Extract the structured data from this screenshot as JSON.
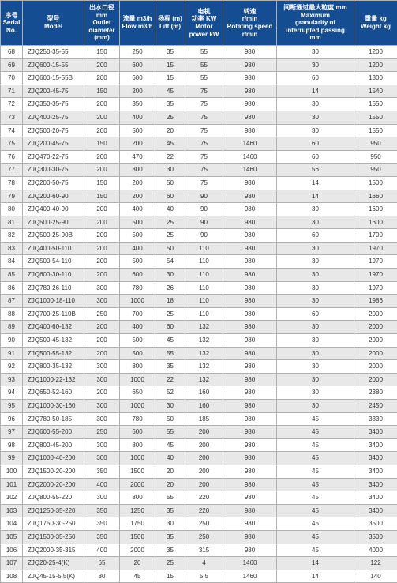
{
  "table": {
    "header_bg": "#154d92",
    "header_fg": "#ffffff",
    "row_even_bg": "#e8e8e8",
    "row_odd_bg": "#ffffff",
    "border_color": "#b0b0b0",
    "columns": [
      {
        "key": "serial",
        "label": "序号\nSerial\nNo."
      },
      {
        "key": "model",
        "label": "型号\nModel"
      },
      {
        "key": "outlet",
        "label": "出水口径\nmm\nOutlet\ndiameter\n(mm)"
      },
      {
        "key": "flow",
        "label": "流量 m3/h\nFlow m3/h"
      },
      {
        "key": "lift",
        "label": "扬程 (m)\nLift (m)"
      },
      {
        "key": "power",
        "label": "电机\n功率 KW\nMotor\npower kW"
      },
      {
        "key": "speed",
        "label": "转速\nr/min\nRotating speed\nr/min"
      },
      {
        "key": "gran",
        "label": "间断通过最大粒度 mm\nMaximum\ngranularity of\ninterrupted passing\nmm"
      },
      {
        "key": "weight",
        "label": "重量 kg\nWeight kg"
      }
    ],
    "rows": [
      {
        "serial": "68",
        "model": "ZJQ250-35-55",
        "outlet": "150",
        "flow": "250",
        "lift": "35",
        "power": "55",
        "speed": "980",
        "gran": "30",
        "weight": "1200"
      },
      {
        "serial": "69",
        "model": "ZJQ600-15-55",
        "outlet": "200",
        "flow": "600",
        "lift": "15",
        "power": "55",
        "speed": "980",
        "gran": "30",
        "weight": "1200"
      },
      {
        "serial": "70",
        "model": "ZJQ600-15-55B",
        "outlet": "200",
        "flow": "600",
        "lift": "15",
        "power": "55",
        "speed": "980",
        "gran": "60",
        "weight": "1300"
      },
      {
        "serial": "71",
        "model": "ZJQ200-45-75",
        "outlet": "150",
        "flow": "200",
        "lift": "45",
        "power": "75",
        "speed": "980",
        "gran": "14",
        "weight": "1540"
      },
      {
        "serial": "72",
        "model": "ZJQ350-35-75",
        "outlet": "200",
        "flow": "350",
        "lift": "35",
        "power": "75",
        "speed": "980",
        "gran": "30",
        "weight": "1550"
      },
      {
        "serial": "73",
        "model": "ZJQ400-25-75",
        "outlet": "200",
        "flow": "400",
        "lift": "25",
        "power": "75",
        "speed": "980",
        "gran": "30",
        "weight": "1550"
      },
      {
        "serial": "74",
        "model": "ZJQ500-20-75",
        "outlet": "200",
        "flow": "500",
        "lift": "20",
        "power": "75",
        "speed": "980",
        "gran": "30",
        "weight": "1550"
      },
      {
        "serial": "75",
        "model": "ZJQ200-45-75",
        "outlet": "150",
        "flow": "200",
        "lift": "45",
        "power": "75",
        "speed": "1460",
        "gran": "60",
        "weight": "950"
      },
      {
        "serial": "76",
        "model": "ZJQ470-22-75",
        "outlet": "200",
        "flow": "470",
        "lift": "22",
        "power": "75",
        "speed": "1460",
        "gran": "60",
        "weight": "950"
      },
      {
        "serial": "77",
        "model": "ZJQ300-30-75",
        "outlet": "200",
        "flow": "300",
        "lift": "30",
        "power": "75",
        "speed": "1460",
        "gran": "56",
        "weight": "950"
      },
      {
        "serial": "78",
        "model": "ZJQ200-50-75",
        "outlet": "150",
        "flow": "200",
        "lift": "50",
        "power": "75",
        "speed": "980",
        "gran": "14",
        "weight": "1500"
      },
      {
        "serial": "79",
        "model": "ZJQ200-60-90",
        "outlet": "150",
        "flow": "200",
        "lift": "60",
        "power": "90",
        "speed": "980",
        "gran": "14",
        "weight": "1660"
      },
      {
        "serial": "80",
        "model": "ZJQ400-40-90",
        "outlet": "200",
        "flow": "400",
        "lift": "40",
        "power": "90",
        "speed": "980",
        "gran": "30",
        "weight": "1600"
      },
      {
        "serial": "81",
        "model": "ZJQ500-25-90",
        "outlet": "200",
        "flow": "500",
        "lift": "25",
        "power": "90",
        "speed": "980",
        "gran": "30",
        "weight": "1600"
      },
      {
        "serial": "82",
        "model": "ZJQ500-25-90B",
        "outlet": "200",
        "flow": "500",
        "lift": "25",
        "power": "90",
        "speed": "980",
        "gran": "60",
        "weight": "1700"
      },
      {
        "serial": "83",
        "model": "ZJQ400-50-110",
        "outlet": "200",
        "flow": "400",
        "lift": "50",
        "power": "110",
        "speed": "980",
        "gran": "30",
        "weight": "1970"
      },
      {
        "serial": "84",
        "model": "ZJQ500-54-110",
        "outlet": "200",
        "flow": "500",
        "lift": "54",
        "power": "110",
        "speed": "980",
        "gran": "30",
        "weight": "1970"
      },
      {
        "serial": "85",
        "model": "ZJQ600-30-110",
        "outlet": "200",
        "flow": "600",
        "lift": "30",
        "power": "110",
        "speed": "980",
        "gran": "30",
        "weight": "1970"
      },
      {
        "serial": "86",
        "model": "ZJQ780-26-110",
        "outlet": "300",
        "flow": "780",
        "lift": "26",
        "power": "110",
        "speed": "980",
        "gran": "30",
        "weight": "1970"
      },
      {
        "serial": "87",
        "model": "ZJQ1000-18-110",
        "outlet": "300",
        "flow": "1000",
        "lift": "18",
        "power": "110",
        "speed": "980",
        "gran": "30",
        "weight": "1986"
      },
      {
        "serial": "88",
        "model": "ZJQ700-25-110B",
        "outlet": "250",
        "flow": "700",
        "lift": "25",
        "power": "110",
        "speed": "980",
        "gran": "60",
        "weight": "2000"
      },
      {
        "serial": "89",
        "model": "ZJQ400-60-132",
        "outlet": "200",
        "flow": "400",
        "lift": "60",
        "power": "132",
        "speed": "980",
        "gran": "30",
        "weight": "2000"
      },
      {
        "serial": "90",
        "model": "ZJQ500-45-132",
        "outlet": "200",
        "flow": "500",
        "lift": "45",
        "power": "132",
        "speed": "980",
        "gran": "30",
        "weight": "2000"
      },
      {
        "serial": "91",
        "model": "ZJQ500-55-132",
        "outlet": "200",
        "flow": "500",
        "lift": "55",
        "power": "132",
        "speed": "980",
        "gran": "30",
        "weight": "2000"
      },
      {
        "serial": "92",
        "model": "ZJQ800-35-132",
        "outlet": "300",
        "flow": "800",
        "lift": "35",
        "power": "132",
        "speed": "980",
        "gran": "30",
        "weight": "2000"
      },
      {
        "serial": "93",
        "model": "ZJQ1000-22-132",
        "outlet": "300",
        "flow": "1000",
        "lift": "22",
        "power": "132",
        "speed": "980",
        "gran": "30",
        "weight": "2000"
      },
      {
        "serial": "94",
        "model": "ZJQ650-52-160",
        "outlet": "200",
        "flow": "650",
        "lift": "52",
        "power": "160",
        "speed": "980",
        "gran": "30",
        "weight": "2380"
      },
      {
        "serial": "95",
        "model": "ZJQ1000-30-160",
        "outlet": "300",
        "flow": "1000",
        "lift": "30",
        "power": "160",
        "speed": "980",
        "gran": "30",
        "weight": "2450"
      },
      {
        "serial": "96",
        "model": "ZJQ780-50-185",
        "outlet": "300",
        "flow": "780",
        "lift": "50",
        "power": "185",
        "speed": "980",
        "gran": "45",
        "weight": "3330"
      },
      {
        "serial": "97",
        "model": "ZJQ600-55-200",
        "outlet": "250",
        "flow": "600",
        "lift": "55",
        "power": "200",
        "speed": "980",
        "gran": "45",
        "weight": "3400"
      },
      {
        "serial": "98",
        "model": "ZJQ800-45-200",
        "outlet": "300",
        "flow": "800",
        "lift": "45",
        "power": "200",
        "speed": "980",
        "gran": "45",
        "weight": "3400"
      },
      {
        "serial": "99",
        "model": "ZJQ1000-40-200",
        "outlet": "300",
        "flow": "1000",
        "lift": "40",
        "power": "200",
        "speed": "980",
        "gran": "45",
        "weight": "3400"
      },
      {
        "serial": "100",
        "model": "ZJQ1500-20-200",
        "outlet": "350",
        "flow": "1500",
        "lift": "20",
        "power": "200",
        "speed": "980",
        "gran": "45",
        "weight": "3400"
      },
      {
        "serial": "101",
        "model": "ZJQ2000-20-200",
        "outlet": "400",
        "flow": "2000",
        "lift": "20",
        "power": "200",
        "speed": "980",
        "gran": "45",
        "weight": "3400"
      },
      {
        "serial": "102",
        "model": "ZJQ800-55-220",
        "outlet": "300",
        "flow": "800",
        "lift": "55",
        "power": "220",
        "speed": "980",
        "gran": "45",
        "weight": "3400"
      },
      {
        "serial": "103",
        "model": "ZJQ1250-35-220",
        "outlet": "350",
        "flow": "1250",
        "lift": "35",
        "power": "220",
        "speed": "980",
        "gran": "45",
        "weight": "3400"
      },
      {
        "serial": "104",
        "model": "ZJQ1750-30-250",
        "outlet": "350",
        "flow": "1750",
        "lift": "30",
        "power": "250",
        "speed": "980",
        "gran": "45",
        "weight": "3500"
      },
      {
        "serial": "105",
        "model": "ZJQ1500-35-250",
        "outlet": "350",
        "flow": "1500",
        "lift": "35",
        "power": "250",
        "speed": "980",
        "gran": "45",
        "weight": "3500"
      },
      {
        "serial": "106",
        "model": "ZJQ2000-35-315",
        "outlet": "400",
        "flow": "2000",
        "lift": "35",
        "power": "315",
        "speed": "980",
        "gran": "45",
        "weight": "4000"
      },
      {
        "serial": "107",
        "model": "ZJQ20-25-4(K)",
        "outlet": "65",
        "flow": "20",
        "lift": "25",
        "power": "4",
        "speed": "1460",
        "gran": "14",
        "weight": "122"
      },
      {
        "serial": "108",
        "model": "ZJQ45-15-5.5(K)",
        "outlet": "80",
        "flow": "45",
        "lift": "15",
        "power": "5.5",
        "speed": "1460",
        "gran": "14",
        "weight": "140"
      }
    ]
  }
}
